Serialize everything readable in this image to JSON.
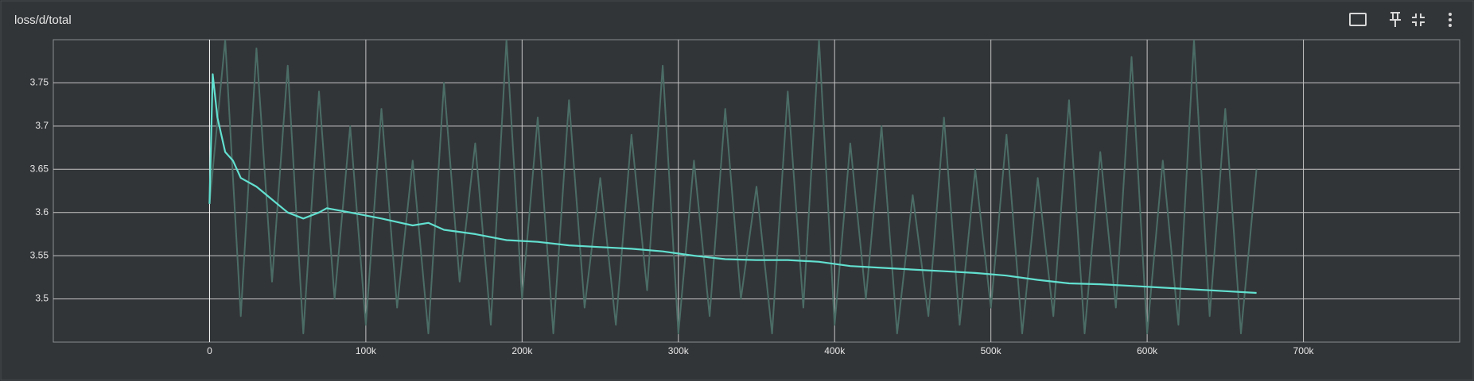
{
  "chart_data": {
    "type": "line",
    "title": "loss/d/total",
    "series": [
      {
        "color": "#4b6d66",
        "x": [
          0,
          10000,
          20000,
          30000,
          40000,
          50000,
          60000,
          70000,
          80000,
          90000,
          100000,
          110000,
          120000,
          130000,
          140000,
          150000,
          160000,
          170000,
          180000,
          190000,
          200000,
          210000,
          220000,
          230000,
          240000,
          250000,
          260000,
          270000,
          280000,
          290000,
          300000,
          310000,
          320000,
          330000,
          340000,
          350000,
          360000,
          370000,
          380000,
          390000,
          400000,
          410000,
          420000,
          430000,
          440000,
          450000,
          460000,
          470000,
          480000,
          490000,
          500000,
          510000,
          520000,
          530000,
          540000,
          550000,
          560000,
          570000,
          580000,
          590000,
          600000,
          610000,
          620000,
          630000,
          640000,
          650000,
          660000,
          670000
        ],
        "values": [
          3.61,
          3.8,
          3.48,
          3.79,
          3.52,
          3.77,
          3.46,
          3.74,
          3.5,
          3.7,
          3.47,
          3.72,
          3.49,
          3.66,
          3.46,
          3.75,
          3.52,
          3.68,
          3.47,
          3.8,
          3.5,
          3.71,
          3.46,
          3.73,
          3.49,
          3.64,
          3.47,
          3.69,
          3.51,
          3.77,
          3.46,
          3.66,
          3.48,
          3.72,
          3.5,
          3.63,
          3.46,
          3.74,
          3.49,
          3.8,
          3.47,
          3.68,
          3.5,
          3.7,
          3.46,
          3.62,
          3.48,
          3.71,
          3.47,
          3.65,
          3.49,
          3.69,
          3.46,
          3.64,
          3.48,
          3.73,
          3.46,
          3.67,
          3.49,
          3.78,
          3.46,
          3.66,
          3.47,
          3.8,
          3.48,
          3.72,
          3.46,
          3.65
        ]
      },
      {
        "color": "#62e0d0",
        "x": [
          0,
          2000,
          5000,
          10000,
          15000,
          20000,
          30000,
          40000,
          50000,
          60000,
          70000,
          75000,
          90000,
          110000,
          130000,
          140000,
          150000,
          170000,
          190000,
          210000,
          230000,
          250000,
          270000,
          290000,
          310000,
          330000,
          350000,
          370000,
          390000,
          410000,
          430000,
          450000,
          470000,
          490000,
          510000,
          530000,
          550000,
          570000,
          590000,
          610000,
          630000,
          650000,
          670000
        ],
        "values": [
          3.61,
          3.76,
          3.71,
          3.67,
          3.66,
          3.64,
          3.63,
          3.615,
          3.6,
          3.593,
          3.6,
          3.605,
          3.6,
          3.593,
          3.585,
          3.588,
          3.58,
          3.575,
          3.568,
          3.566,
          3.562,
          3.56,
          3.558,
          3.555,
          3.55,
          3.546,
          3.545,
          3.545,
          3.543,
          3.538,
          3.536,
          3.534,
          3.532,
          3.53,
          3.527,
          3.522,
          3.518,
          3.517,
          3.515,
          3.513,
          3.511,
          3.509,
          3.507
        ]
      }
    ],
    "xlim": [
      -100000,
      800000
    ],
    "xticks": [
      0,
      {
        "value": 100000,
        "label": "100k"
      },
      {
        "value": 200000,
        "label": "200k"
      },
      {
        "value": 300000,
        "label": "300k"
      },
      {
        "value": 400000,
        "label": "400k"
      },
      {
        "value": 500000,
        "label": "500k"
      },
      {
        "value": 600000,
        "label": "600k"
      },
      {
        "value": 700000,
        "label": "700k"
      }
    ],
    "ylim": [
      3.45,
      3.8
    ],
    "yticks": [
      3.5,
      3.55,
      3.6,
      3.65,
      3.7,
      3.75
    ],
    "grid": true
  }
}
